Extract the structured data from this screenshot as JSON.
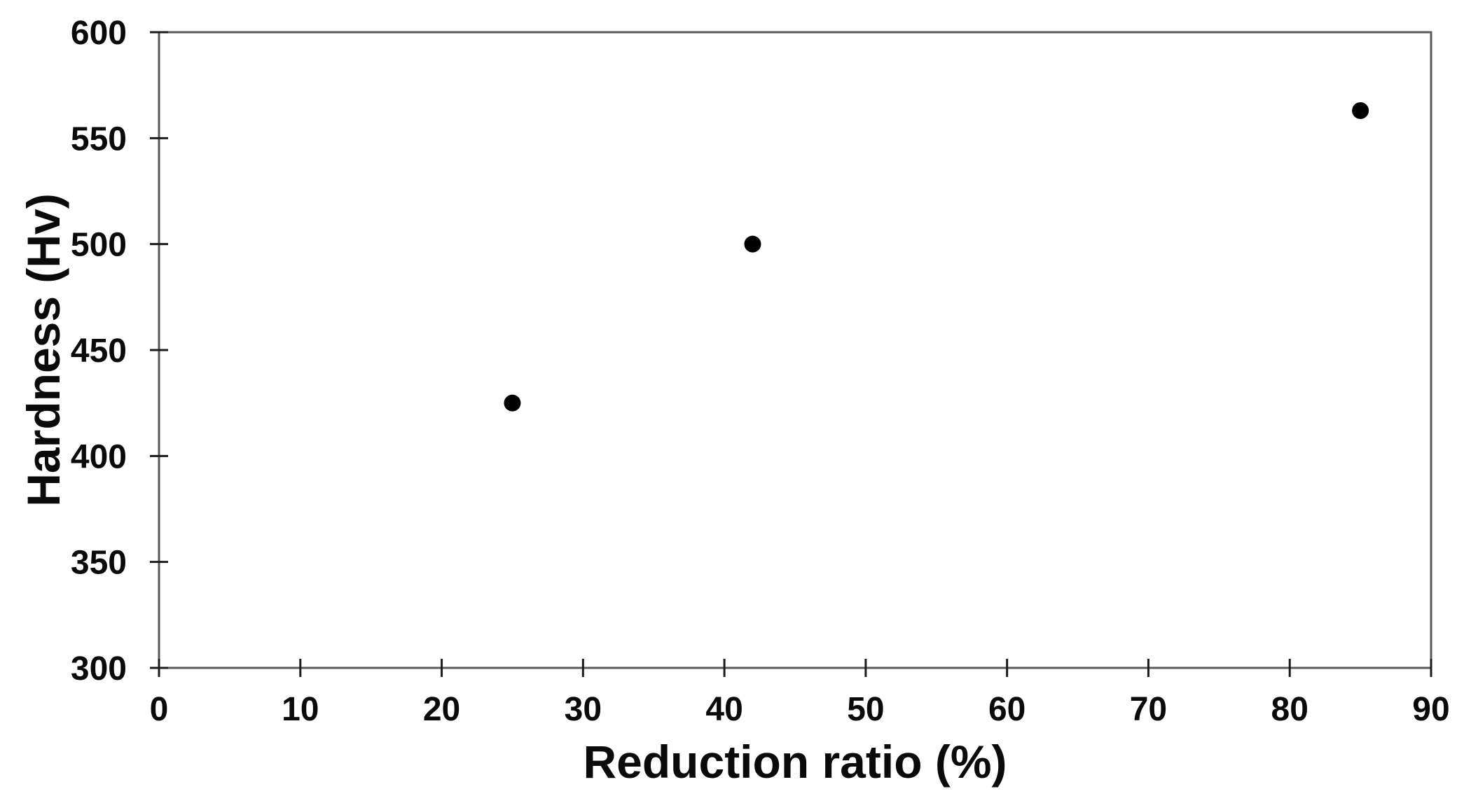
{
  "figure": {
    "background_color": "#ffffff"
  },
  "chart_data": {
    "type": "scatter",
    "title": "",
    "xlabel": "Reduction ratio (%)",
    "ylabel": "Hardness (Hv)",
    "xlim": [
      0,
      90
    ],
    "ylim": [
      300,
      600
    ],
    "xticks": [
      0,
      10,
      20,
      30,
      40,
      50,
      60,
      70,
      80,
      90
    ],
    "yticks": [
      300,
      350,
      400,
      450,
      500,
      550,
      600
    ],
    "grid": false,
    "legend": "none",
    "frame": "full-box",
    "tick_style": "cross",
    "axis_color": "#5a5a5c",
    "tick_color": "#1c1c1c",
    "text_color": "#0a0a0a",
    "series": [
      {
        "name": "hardness-vs-reduction",
        "marker": "filled-circle",
        "marker_color": "#000000",
        "points": [
          {
            "x": 25,
            "y": 425
          },
          {
            "x": 42,
            "y": 500
          },
          {
            "x": 85,
            "y": 563
          }
        ]
      }
    ]
  }
}
